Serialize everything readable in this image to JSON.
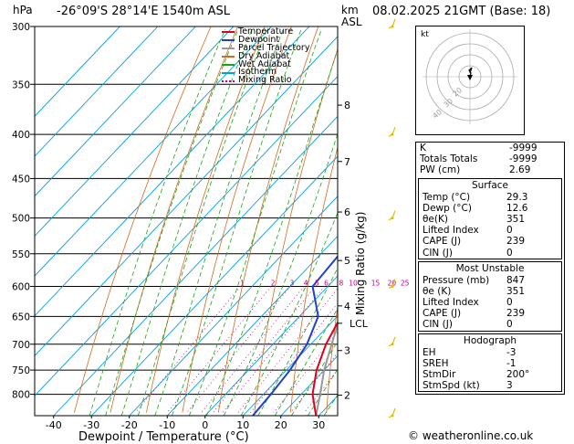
{
  "header": {
    "pressure_unit": "hPa",
    "location": "-26°09'S  28°14'E  1540m  ASL",
    "height_unit_km": "km",
    "height_unit_asl": "ASL",
    "datetime": "08.02.2025  21GMT  (Base: 18)"
  },
  "legend": [
    {
      "label": "Temperature",
      "color": "#e0001c"
    },
    {
      "label": "Dewpoint",
      "color": "#1f3fd0"
    },
    {
      "label": "Parcel Trajectory",
      "color": "#999999"
    },
    {
      "label": "Dry Adiabat",
      "color": "#d2691e"
    },
    {
      "label": "Wet Adiabat",
      "color": "#18a318"
    },
    {
      "label": "Isotherm",
      "color": "#00a0e0"
    },
    {
      "label": "Mixing Ratio",
      "color": "#c0008a"
    }
  ],
  "chart_data": {
    "type": "skew-t log-p diagram",
    "xlabel": "Dewpoint / Temperature (°C)",
    "ylabel_right": "Mixing Ratio (g/kg)",
    "pressure_ticks": [
      300,
      350,
      400,
      450,
      500,
      550,
      600,
      650,
      700,
      750,
      800
    ],
    "temperature_ticks": [
      -40,
      -30,
      -20,
      -10,
      0,
      10,
      20,
      30
    ],
    "km_ticks": [
      {
        "km": "8",
        "p": 370
      },
      {
        "km": "7",
        "p": 430
      },
      {
        "km": "6",
        "p": 492
      },
      {
        "km": "5",
        "p": 560
      },
      {
        "km": "4",
        "p": 632
      },
      {
        "km": "3",
        "p": 712
      },
      {
        "km": "2",
        "p": 802
      }
    ],
    "lcl_label": "LCL",
    "lcl_pressure": 662,
    "mixing_ratio_labels": [
      "1",
      "2",
      "3",
      "4",
      "5",
      "6",
      "8",
      "10",
      "15",
      "20",
      "25"
    ],
    "mixing_ratio_values": [
      1,
      2,
      3,
      4,
      5,
      6,
      8,
      10,
      15,
      20,
      25
    ],
    "temperature_profile": [
      {
        "p": 847,
        "t": 29.3
      },
      {
        "p": 800,
        "t": 23.0
      },
      {
        "p": 750,
        "t": 18.0
      },
      {
        "p": 700,
        "t": 14.0
      },
      {
        "p": 650,
        "t": 11.0
      },
      {
        "p": 600,
        "t": 8.5
      },
      {
        "p": 550,
        "t": 4.0
      },
      {
        "p": 500,
        "t": -1.0
      },
      {
        "p": 450,
        "t": -6.0
      },
      {
        "p": 400,
        "t": -12.0
      },
      {
        "p": 350,
        "t": -19.0
      }
    ],
    "dewpoint_profile": [
      {
        "p": 847,
        "t": 12.6
      },
      {
        "p": 800,
        "t": 12.0
      },
      {
        "p": 750,
        "t": 11.0
      },
      {
        "p": 700,
        "t": 9.0
      },
      {
        "p": 650,
        "t": 5.0
      },
      {
        "p": 600,
        "t": -4.0
      },
      {
        "p": 550,
        "t": -5.0
      },
      {
        "p": 500,
        "t": -9.0
      },
      {
        "p": 450,
        "t": -13.0
      },
      {
        "p": 400,
        "t": -25.0
      },
      {
        "p": 350,
        "t": -40.0
      },
      {
        "p": 300,
        "t": -44.0
      }
    ],
    "parcel_profile": [
      {
        "p": 847,
        "t": 29.3
      },
      {
        "p": 800,
        "t": 25.0
      },
      {
        "p": 750,
        "t": 20.0
      },
      {
        "p": 700,
        "t": 15.5
      },
      {
        "p": 662,
        "t": 12.0
      },
      {
        "p": 600,
        "t": 9.5
      },
      {
        "p": 550,
        "t": 5.5
      },
      {
        "p": 500,
        "t": 0.5
      },
      {
        "p": 450,
        "t": -4.5
      },
      {
        "p": 400,
        "t": -10.5
      },
      {
        "p": 350,
        "t": -17.0
      }
    ],
    "x_range": [
      -45,
      35
    ],
    "p_range": [
      300,
      847
    ]
  },
  "hodograph": {
    "unit_label": "kt",
    "ring_labels": [
      "40",
      "30",
      "20"
    ]
  },
  "indices": {
    "top": [
      {
        "label": "K",
        "value": "-9999"
      },
      {
        "label": "Totals Totals",
        "value": "-9999"
      },
      {
        "label": "PW (cm)",
        "value": "2.69"
      }
    ],
    "surface": {
      "title": "Surface",
      "rows": [
        {
          "label": "Temp (°C)",
          "value": "29.3"
        },
        {
          "label": "Dewp (°C)",
          "value": "12.6"
        },
        {
          "label": "θe(K)",
          "value": "351"
        },
        {
          "label": "Lifted Index",
          "value": "0"
        },
        {
          "label": "CAPE (J)",
          "value": "239"
        },
        {
          "label": "CIN (J)",
          "value": "0"
        }
      ]
    },
    "most_unstable": {
      "title": "Most Unstable",
      "rows": [
        {
          "label": "Pressure (mb)",
          "value": "847"
        },
        {
          "label": "θe (K)",
          "value": "351"
        },
        {
          "label": "Lifted Index",
          "value": "0"
        },
        {
          "label": "CAPE (J)",
          "value": "239"
        },
        {
          "label": "CIN (J)",
          "value": "0"
        }
      ]
    },
    "hodograph_table": {
      "title": "Hodograph",
      "rows": [
        {
          "label": "EH",
          "value": "-3"
        },
        {
          "label": "SREH",
          "value": "-1"
        },
        {
          "label": "StmDir",
          "value": "200°"
        },
        {
          "label": "StmSpd (kt)",
          "value": "3"
        }
      ]
    }
  },
  "footer": {
    "copyright": "© weatheronline.co.uk"
  }
}
